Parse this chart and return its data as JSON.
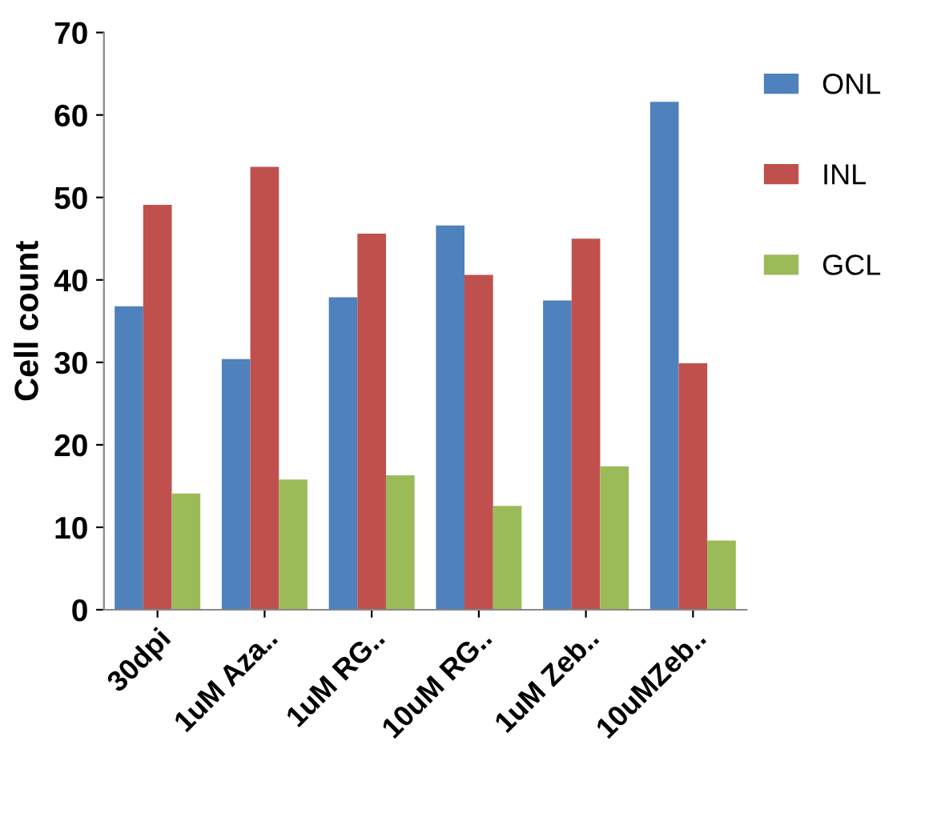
{
  "chart_data": {
    "type": "bar",
    "ylabel": "Cell count",
    "categories": [
      "30dpi",
      "1uM Aza..",
      "1uM RG..",
      "10uM RG..",
      "1uM Zeb..",
      "10uMZeb.."
    ],
    "series": [
      {
        "name": "ONL",
        "color": "#4f81bd",
        "values": [
          36.8,
          30.4,
          37.9,
          46.6,
          37.5,
          61.6
        ]
      },
      {
        "name": "INL",
        "color": "#c0504d",
        "values": [
          49.1,
          53.7,
          45.6,
          40.6,
          45.0,
          29.9
        ]
      },
      {
        "name": "GCL",
        "color": "#9bbb59",
        "values": [
          14.1,
          15.8,
          16.3,
          12.6,
          17.4,
          8.4
        ]
      }
    ],
    "ylim": [
      0,
      70
    ],
    "yticks": [
      0,
      10,
      20,
      30,
      40,
      50,
      60,
      70
    ],
    "grid": false,
    "legend": "right"
  }
}
